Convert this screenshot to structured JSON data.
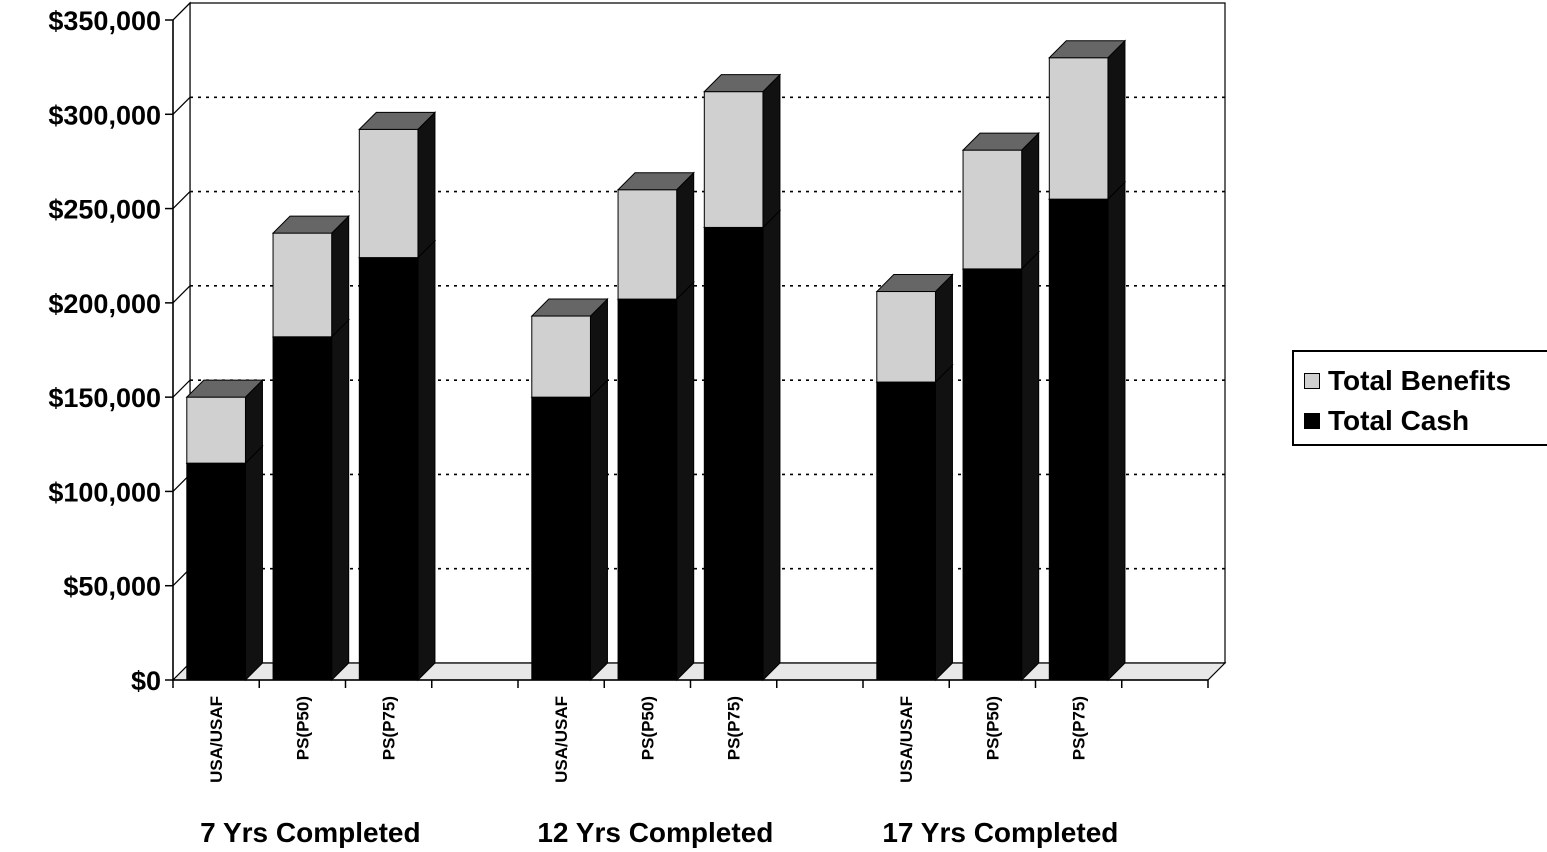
{
  "chart_data": {
    "type": "bar",
    "stacked": true,
    "three_d": true,
    "groups": [
      "7 Yrs Completed",
      "12 Yrs Completed",
      "17 Yrs Completed"
    ],
    "categories": [
      "USA/USAF",
      "PS(P50)",
      "PS(P75)"
    ],
    "y_tick_labels": [
      "$0",
      "$50,000",
      "$100,000",
      "$150,000",
      "$200,000",
      "$250,000",
      "$300,000",
      "$350,000"
    ],
    "ylim": [
      0,
      350000
    ],
    "grid": true,
    "legend_position": "right",
    "series": [
      {
        "name": "Total Cash",
        "color": "#000000",
        "values": [
          [
            115000,
            182000,
            224000
          ],
          [
            150000,
            202000,
            240000
          ],
          [
            158000,
            218000,
            255000
          ]
        ]
      },
      {
        "name": "Total Benefits",
        "color": "#d0d0d0",
        "values": [
          [
            35000,
            55000,
            68000
          ],
          [
            43000,
            58000,
            72000
          ],
          [
            48000,
            63000,
            75000
          ]
        ]
      }
    ],
    "legend": [
      {
        "name": "Total Benefits",
        "color": "#d0d0d0"
      },
      {
        "name": "Total Cash",
        "color": "#000000"
      }
    ]
  }
}
